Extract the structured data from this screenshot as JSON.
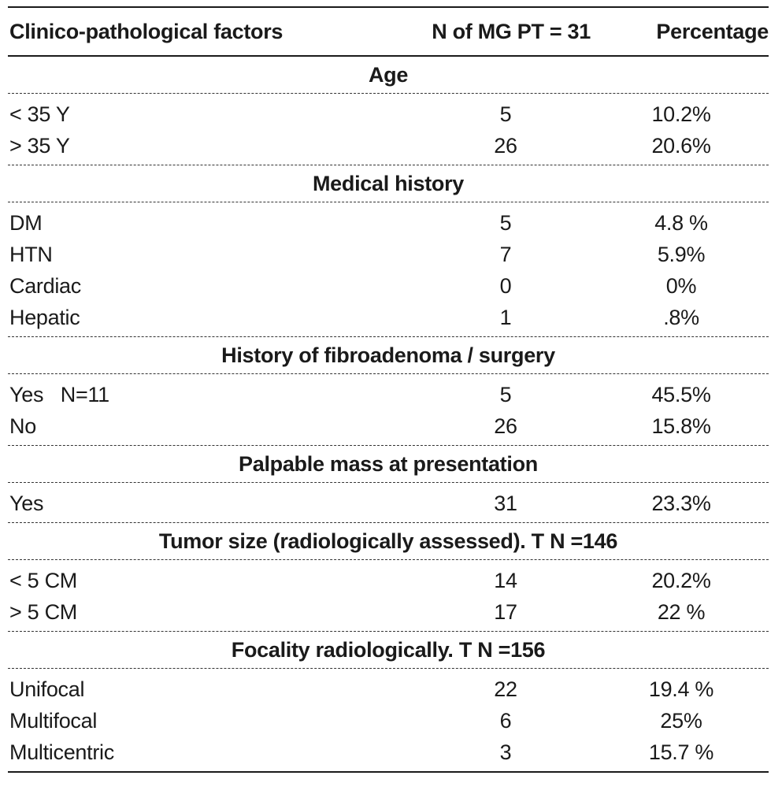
{
  "table": {
    "headers": {
      "factor": "Clinico-pathological factors",
      "n": "N of MG PT = 31",
      "percentage": "Percentage"
    },
    "sections": [
      {
        "title": "Age",
        "rows": [
          {
            "factor": "< 35 Y",
            "n": "5",
            "pct": "10.2%"
          },
          {
            "factor": "> 35 Y",
            "n": "26",
            "pct": "20.6%"
          }
        ]
      },
      {
        "title": "Medical history",
        "rows": [
          {
            "factor": "DM",
            "n": "5",
            "pct": "4.8 %"
          },
          {
            "factor": "HTN",
            "n": "7",
            "pct": "5.9%"
          },
          {
            "factor": "Cardiac",
            "n": "0",
            "pct": "0%"
          },
          {
            "factor": "Hepatic",
            "n": "1",
            "pct": ".8%"
          }
        ]
      },
      {
        "title": "History of fibroadenoma / surgery",
        "rows": [
          {
            "factor": "Yes   N=11",
            "n": "5",
            "pct": "45.5%"
          },
          {
            "factor": "No",
            "n": "26",
            "pct": "15.8%"
          }
        ]
      },
      {
        "title": "Palpable mass at presentation",
        "rows": [
          {
            "factor": "Yes",
            "n": "31",
            "pct": "23.3%"
          }
        ]
      },
      {
        "title": "Tumor size (radiologically assessed). T N =146",
        "rows": [
          {
            "factor": "< 5 CM",
            "n": "14",
            "pct": "20.2%"
          },
          {
            "factor": "> 5 CM",
            "n": "17",
            "pct": "22 %"
          }
        ]
      },
      {
        "title": "Focality radiologically.  T N =156",
        "rows": [
          {
            "factor": "Unifocal",
            "n": "22",
            "pct": "19.4 %"
          },
          {
            "factor": "Multifocal",
            "n": "6",
            "pct": "25%"
          },
          {
            "factor": "Multicentric",
            "n": "3",
            "pct": "15.7 %"
          }
        ]
      }
    ]
  }
}
